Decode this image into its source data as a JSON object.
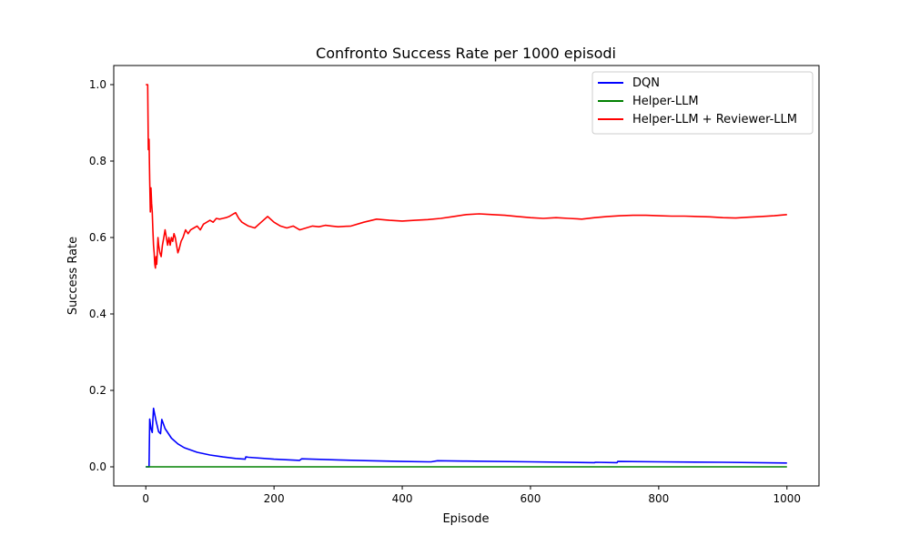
{
  "chart_data": {
    "type": "line",
    "title": "Confronto Success Rate per 1000 episodi",
    "xlabel": "Episode",
    "ylabel": "Success Rate",
    "xlim": [
      -50,
      1050
    ],
    "ylim": [
      -0.05,
      1.05
    ],
    "xticks": [
      0,
      200,
      400,
      600,
      800,
      1000
    ],
    "xtick_labels": [
      "0",
      "200",
      "400",
      "600",
      "800",
      "1000"
    ],
    "yticks": [
      0.0,
      0.2,
      0.4,
      0.6,
      0.8,
      1.0
    ],
    "ytick_labels": [
      "0.0",
      "0.2",
      "0.4",
      "0.6",
      "0.8",
      "1.0"
    ],
    "grid": false,
    "legend_position": "top-right",
    "series": [
      {
        "name": "DQN",
        "color": "#0000ff",
        "x": [
          0,
          4,
          5,
          6,
          8,
          10,
          12,
          16,
          20,
          23,
          25,
          30,
          40,
          50,
          60,
          80,
          100,
          120,
          140,
          155,
          156,
          160,
          200,
          240,
          243,
          300,
          350,
          400,
          440,
          445,
          455,
          500,
          600,
          700,
          701,
          735,
          736,
          800,
          900,
          1000
        ],
        "y": [
          0,
          0,
          0,
          0.125,
          0.1,
          0.09,
          0.153,
          0.12,
          0.092,
          0.087,
          0.124,
          0.1,
          0.075,
          0.06,
          0.05,
          0.038,
          0.031,
          0.026,
          0.022,
          0.02,
          0.026,
          0.025,
          0.02,
          0.017,
          0.021,
          0.018,
          0.016,
          0.014,
          0.013,
          0.013,
          0.016,
          0.015,
          0.013,
          0.011,
          0.012,
          0.011,
          0.014,
          0.013,
          0.012,
          0.01
        ]
      },
      {
        "name": "Helper-LLM",
        "color": "#008000",
        "x": [
          0,
          1000
        ],
        "y": [
          0,
          0
        ]
      },
      {
        "name": "Helper-LLM + Reviewer-LLM",
        "color": "#ff0000",
        "x": [
          0,
          3,
          4,
          5,
          6,
          7,
          8,
          9,
          10,
          11,
          12,
          13,
          14,
          15,
          16,
          17,
          18,
          19,
          20,
          22,
          24,
          26,
          28,
          30,
          32,
          34,
          36,
          38,
          40,
          42,
          44,
          46,
          48,
          50,
          52,
          55,
          58,
          62,
          66,
          70,
          75,
          80,
          85,
          90,
          95,
          100,
          105,
          110,
          115,
          120,
          125,
          130,
          135,
          140,
          145,
          150,
          155,
          160,
          170,
          180,
          190,
          200,
          210,
          220,
          230,
          240,
          250,
          260,
          270,
          280,
          290,
          300,
          320,
          340,
          360,
          380,
          400,
          420,
          440,
          460,
          480,
          500,
          520,
          540,
          560,
          580,
          600,
          620,
          640,
          660,
          680,
          700,
          720,
          740,
          760,
          780,
          800,
          820,
          840,
          860,
          880,
          900,
          920,
          940,
          960,
          980,
          1000
        ],
        "y": [
          1.0,
          1.0,
          0.83,
          0.857,
          0.75,
          0.667,
          0.73,
          0.69,
          0.667,
          0.62,
          0.58,
          0.56,
          0.53,
          0.52,
          0.55,
          0.53,
          0.56,
          0.6,
          0.58,
          0.56,
          0.55,
          0.58,
          0.6,
          0.62,
          0.6,
          0.58,
          0.6,
          0.58,
          0.6,
          0.59,
          0.61,
          0.6,
          0.58,
          0.56,
          0.57,
          0.59,
          0.6,
          0.62,
          0.61,
          0.62,
          0.625,
          0.63,
          0.62,
          0.635,
          0.64,
          0.645,
          0.64,
          0.65,
          0.648,
          0.65,
          0.652,
          0.655,
          0.66,
          0.665,
          0.65,
          0.64,
          0.635,
          0.63,
          0.625,
          0.64,
          0.655,
          0.64,
          0.63,
          0.625,
          0.63,
          0.62,
          0.625,
          0.63,
          0.628,
          0.632,
          0.63,
          0.628,
          0.63,
          0.64,
          0.648,
          0.645,
          0.643,
          0.645,
          0.647,
          0.65,
          0.655,
          0.66,
          0.662,
          0.66,
          0.658,
          0.655,
          0.652,
          0.65,
          0.652,
          0.65,
          0.648,
          0.652,
          0.655,
          0.657,
          0.658,
          0.658,
          0.657,
          0.656,
          0.656,
          0.655,
          0.654,
          0.652,
          0.651,
          0.653,
          0.655,
          0.657,
          0.66
        ]
      }
    ]
  }
}
